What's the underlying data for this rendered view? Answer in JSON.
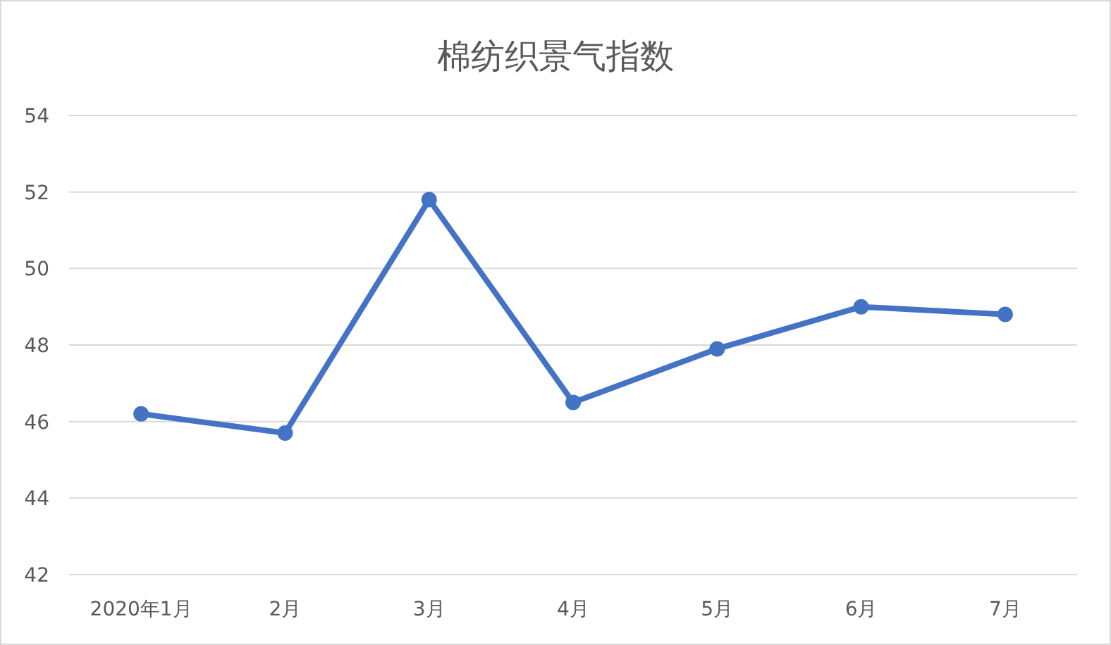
{
  "chart_data": {
    "type": "line",
    "title": "棉纺织景气指数",
    "categories": [
      "2020年1月",
      "2月",
      "3月",
      "4月",
      "5月",
      "6月",
      "7月"
    ],
    "series": [
      {
        "color": "#4472c4",
        "values": [
          46.2,
          45.7,
          51.8,
          46.5,
          47.9,
          49.0,
          48.8
        ]
      }
    ],
    "ylim": [
      42,
      54
    ],
    "yticks": [
      42,
      44,
      46,
      48,
      50,
      52,
      54
    ],
    "grid": "y",
    "marker": "circle"
  }
}
